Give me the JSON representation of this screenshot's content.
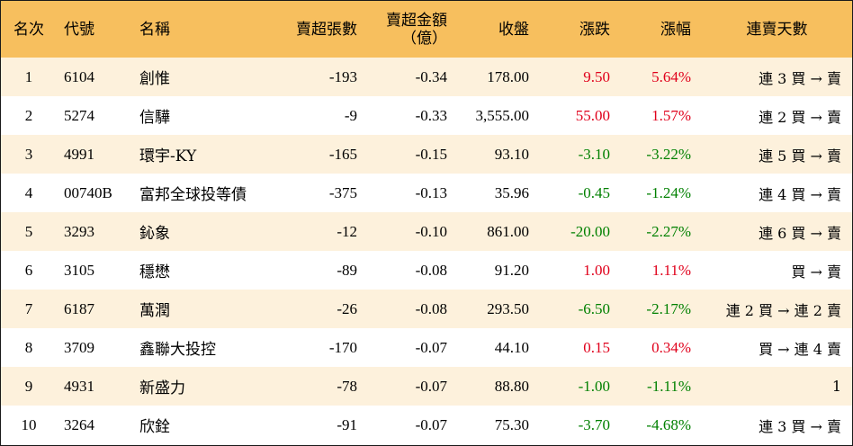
{
  "headers": {
    "rank": "名次",
    "code": "代號",
    "name": "名稱",
    "net_sell_lots": "賣超張數",
    "net_sell_amount_line1": "賣超金額",
    "net_sell_amount_line2": "（億）",
    "close": "收盤",
    "change": "漲跌",
    "change_pct": "漲幅",
    "streak": "連賣天數"
  },
  "colors": {
    "header_bg": "#f7bf5e",
    "stripe_bg": "#fdf1dc",
    "up": "#e0001b",
    "down": "#008000"
  },
  "rows": [
    {
      "rank": "1",
      "code": "6104",
      "name": "創惟",
      "lots": "-193",
      "amount": "-0.34",
      "close": "178.00",
      "change": "9.50",
      "pct": "5.64%",
      "dir": "up",
      "streak": "連 3 買 → 賣"
    },
    {
      "rank": "2",
      "code": "5274",
      "name": "信驊",
      "lots": "-9",
      "amount": "-0.33",
      "close": "3,555.00",
      "change": "55.00",
      "pct": "1.57%",
      "dir": "up",
      "streak": "連 2 買 → 賣"
    },
    {
      "rank": "3",
      "code": "4991",
      "name": "環宇-KY",
      "lots": "-165",
      "amount": "-0.15",
      "close": "93.10",
      "change": "-3.10",
      "pct": "-3.22%",
      "dir": "down",
      "streak": "連 5 買 → 賣"
    },
    {
      "rank": "4",
      "code": "00740B",
      "name": "富邦全球投等債",
      "lots": "-375",
      "amount": "-0.13",
      "close": "35.96",
      "change": "-0.45",
      "pct": "-1.24%",
      "dir": "down",
      "streak": "連 4 買 → 賣"
    },
    {
      "rank": "5",
      "code": "3293",
      "name": "鈊象",
      "lots": "-12",
      "amount": "-0.10",
      "close": "861.00",
      "change": "-20.00",
      "pct": "-2.27%",
      "dir": "down",
      "streak": "連 6 買 → 賣"
    },
    {
      "rank": "6",
      "code": "3105",
      "name": "穩懋",
      "lots": "-89",
      "amount": "-0.08",
      "close": "91.20",
      "change": "1.00",
      "pct": "1.11%",
      "dir": "up",
      "streak": "買 → 賣"
    },
    {
      "rank": "7",
      "code": "6187",
      "name": "萬潤",
      "lots": "-26",
      "amount": "-0.08",
      "close": "293.50",
      "change": "-6.50",
      "pct": "-2.17%",
      "dir": "down",
      "streak": "連 2 買 → 連 2 賣"
    },
    {
      "rank": "8",
      "code": "3709",
      "name": "鑫聯大投控",
      "lots": "-170",
      "amount": "-0.07",
      "close": "44.10",
      "change": "0.15",
      "pct": "0.34%",
      "dir": "up",
      "streak": "買 → 連 4 賣"
    },
    {
      "rank": "9",
      "code": "4931",
      "name": "新盛力",
      "lots": "-78",
      "amount": "-0.07",
      "close": "88.80",
      "change": "-1.00",
      "pct": "-1.11%",
      "dir": "down",
      "streak": "1"
    },
    {
      "rank": "10",
      "code": "3264",
      "name": "欣銓",
      "lots": "-91",
      "amount": "-0.07",
      "close": "75.30",
      "change": "-3.70",
      "pct": "-4.68%",
      "dir": "down",
      "streak": "連 3 買 → 賣"
    }
  ]
}
